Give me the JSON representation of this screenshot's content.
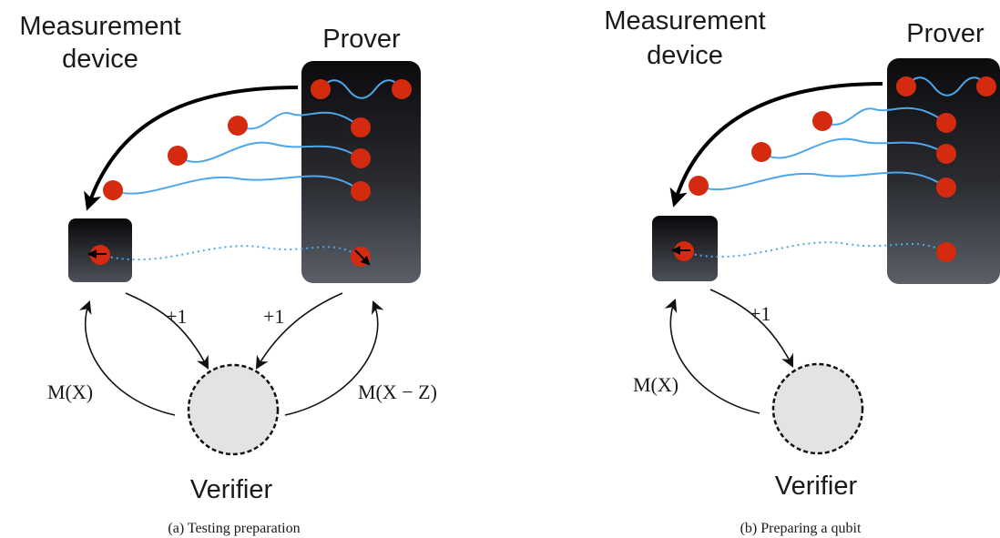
{
  "panels": [
    {
      "id": "a",
      "measurement_label_line1": "Measurement",
      "measurement_label_line2": "device",
      "prover_label": "Prover",
      "verifier_label": "Verifier",
      "edge_left_label": "M(X)",
      "edge_left_ret": "+1",
      "edge_right_ret": "+1",
      "edge_right_label": "M(X − Z)",
      "caption": "(a) Testing preparation"
    },
    {
      "id": "b",
      "measurement_label_line1": "Measurement",
      "measurement_label_line2": "device",
      "prover_label": "Prover",
      "verifier_label": "Verifier",
      "edge_left_label": "M(X)",
      "edge_left_ret": "+1",
      "caption": "(b) Preparing a qubit"
    }
  ],
  "colors": {
    "qubit": "#d42a10",
    "wire": "#4ea6ea",
    "box_top": "#0b0b0d",
    "box_bottom": "#5a5f68",
    "verifier_fill": "#e2e3e5"
  }
}
